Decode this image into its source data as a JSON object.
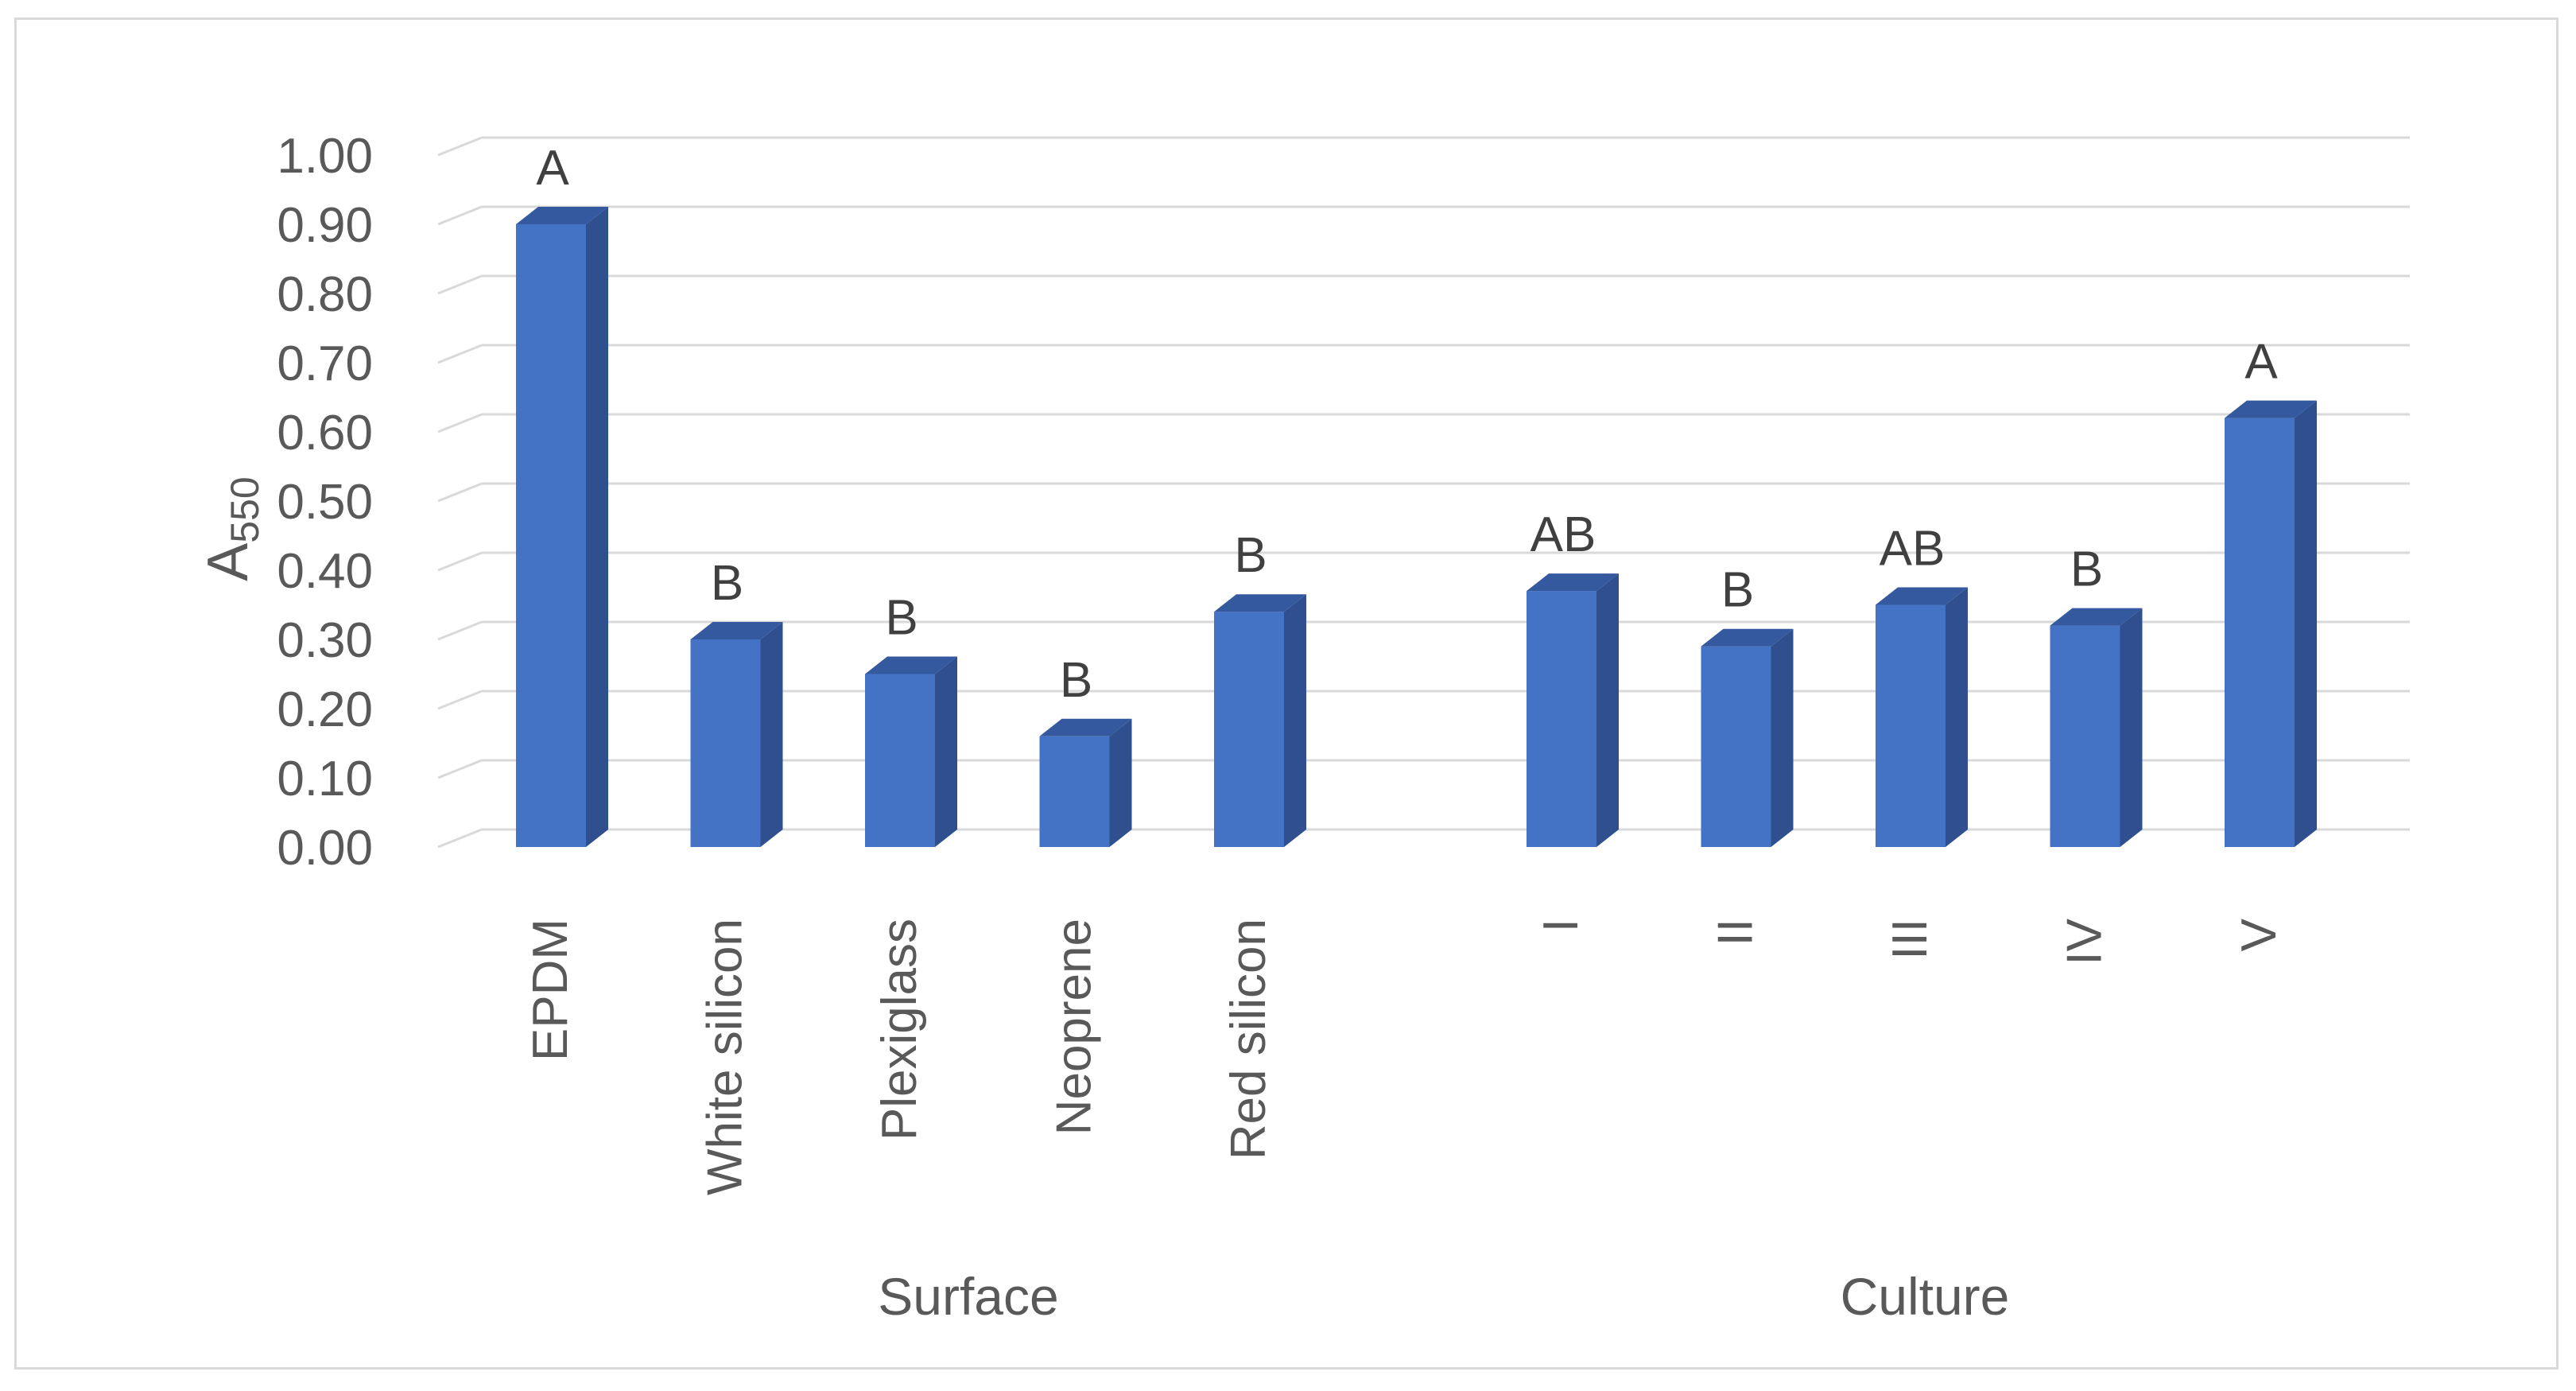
{
  "chart_data": {
    "type": "bar",
    "ylabel_main": "A",
    "ylabel_sub": "550",
    "ylim": [
      0,
      1.0
    ],
    "yticks": [
      "0.00",
      "0.10",
      "0.20",
      "0.30",
      "0.40",
      "0.50",
      "0.60",
      "0.70",
      "0.80",
      "0.90",
      "1.00"
    ],
    "grid": true,
    "bar_color": "#4472c4",
    "groups": [
      {
        "label": "Surface",
        "categories": [
          "EPDM",
          "White silicon",
          "Plexiglass",
          "Neoprene",
          "Red silicon"
        ],
        "values": [
          0.9,
          0.3,
          0.25,
          0.16,
          0.34
        ],
        "letters": [
          "A",
          "B",
          "B",
          "B",
          "B"
        ]
      },
      {
        "label": "Culture",
        "categories": [
          "I",
          "II",
          "III",
          "IV",
          "V"
        ],
        "values": [
          0.37,
          0.29,
          0.35,
          0.32,
          0.62
        ],
        "letters": [
          "AB",
          "B",
          "AB",
          "B",
          "A"
        ]
      }
    ]
  }
}
